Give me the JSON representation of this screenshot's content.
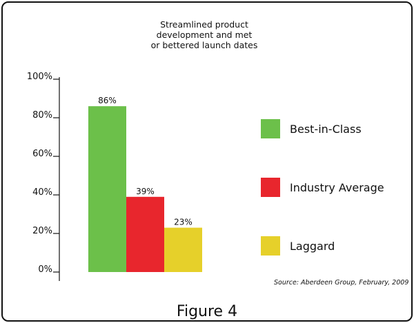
{
  "chart_data": {
    "type": "bar",
    "title": "Streamlined product development and met or bettered launch dates",
    "title_lines": [
      "Streamlined product",
      "development and met",
      "or bettered launch dates"
    ],
    "categories": [
      "Best-in-Class",
      "Industry Average",
      "Laggard"
    ],
    "values": [
      86,
      39,
      23
    ],
    "value_labels": [
      "86%",
      "39%",
      "23%"
    ],
    "colors": [
      "#6cc04a",
      "#e8262d",
      "#e6d02a"
    ],
    "ylim": [
      0,
      100
    ],
    "yticks": [
      "0%",
      "20%",
      "40%",
      "60%",
      "80%",
      "100%"
    ],
    "ytick_values": [
      0,
      20,
      40,
      60,
      80,
      100
    ],
    "legend_position": "right",
    "grid": false,
    "source": "Source: Aberdeen Group, February, 2009",
    "caption": "Figure 4"
  }
}
